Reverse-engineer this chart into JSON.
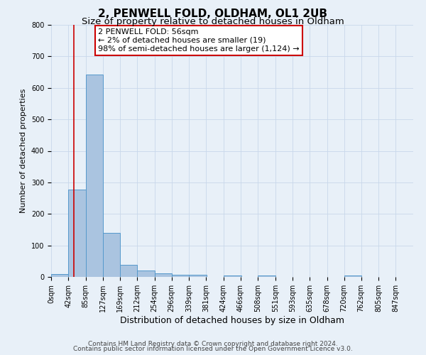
{
  "title": "2, PENWELL FOLD, OLDHAM, OL1 2UB",
  "subtitle": "Size of property relative to detached houses in Oldham",
  "xlabel": "Distribution of detached houses by size in Oldham",
  "ylabel": "Number of detached properties",
  "bar_left_edges": [
    0,
    42,
    85,
    127,
    169,
    212,
    254,
    296,
    339,
    381,
    424,
    466,
    508,
    551,
    593,
    635,
    678,
    720,
    762,
    805
  ],
  "bar_heights": [
    8,
    277,
    643,
    140,
    38,
    20,
    12,
    6,
    7,
    0,
    5,
    0,
    5,
    0,
    0,
    0,
    0,
    5,
    0,
    0
  ],
  "bin_width": 43,
  "bar_color": "#aac4e0",
  "bar_edge_color": "#5599cc",
  "bar_linewidth": 0.7,
  "vline_x": 56,
  "vline_color": "#cc0000",
  "vline_linewidth": 1.2,
  "annotation_line1": "2 PENWELL FOLD: 56sqm",
  "annotation_line2": "← 2% of detached houses are smaller (19)",
  "annotation_line3": "98% of semi-detached houses are larger (1,124) →",
  "annotation_box_color": "#ffffff",
  "annotation_border_color": "#cc0000",
  "xlim_left": 0,
  "xlim_right": 890,
  "ylim_bottom": 0,
  "ylim_top": 800,
  "yticks": [
    0,
    100,
    200,
    300,
    400,
    500,
    600,
    700,
    800
  ],
  "xtick_labels": [
    "0sqm",
    "42sqm",
    "85sqm",
    "127sqm",
    "169sqm",
    "212sqm",
    "254sqm",
    "296sqm",
    "339sqm",
    "381sqm",
    "424sqm",
    "466sqm",
    "508sqm",
    "551sqm",
    "593sqm",
    "635sqm",
    "678sqm",
    "720sqm",
    "762sqm",
    "805sqm",
    "847sqm"
  ],
  "xtick_positions": [
    0,
    42,
    85,
    127,
    169,
    212,
    254,
    296,
    339,
    381,
    424,
    466,
    508,
    551,
    593,
    635,
    678,
    720,
    762,
    805,
    847
  ],
  "grid_color": "#c8d8ea",
  "background_color": "#e8f0f8",
  "footer_line1": "Contains HM Land Registry data © Crown copyright and database right 2024.",
  "footer_line2": "Contains public sector information licensed under the Open Government Licence v3.0.",
  "title_fontsize": 11,
  "subtitle_fontsize": 9.5,
  "xlabel_fontsize": 9,
  "ylabel_fontsize": 8,
  "tick_fontsize": 7,
  "annotation_fontsize": 8,
  "footer_fontsize": 6.5
}
